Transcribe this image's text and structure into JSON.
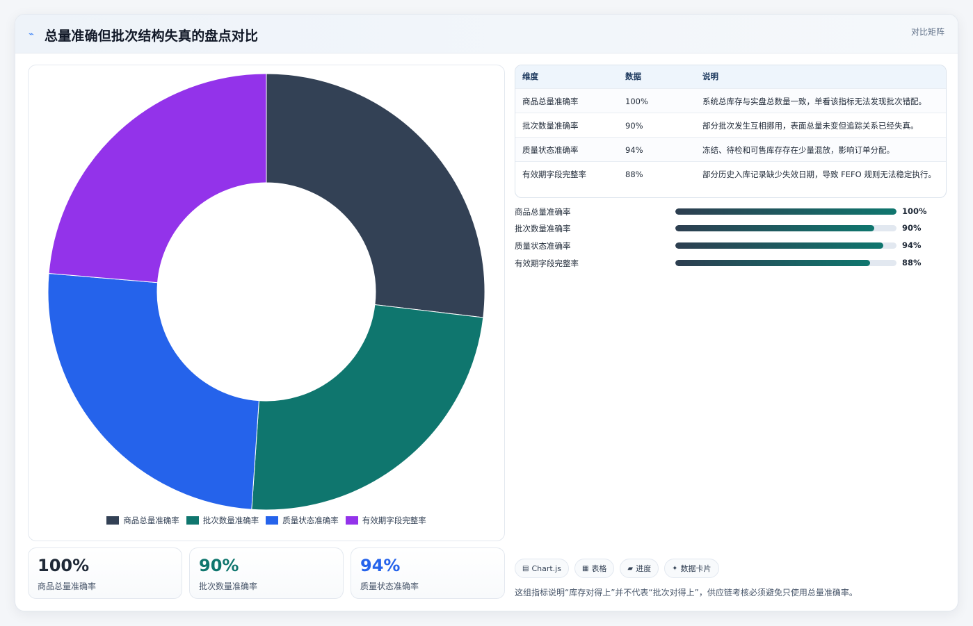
{
  "header": {
    "icon": "bolt-icon",
    "title": "总量准确但批次结构失真的盘点对比",
    "right_label": "对比矩阵"
  },
  "chart_data": {
    "type": "pie",
    "donut": true,
    "categories": [
      "商品总量准确率",
      "批次数量准确率",
      "质量状态准确率",
      "有效期字段完整率"
    ],
    "values": [
      100,
      90,
      94,
      88
    ],
    "unit": "%",
    "colors": [
      "#334155",
      "#0f766e",
      "#2563eb",
      "#9333ea"
    ],
    "legend_position": "bottom"
  },
  "stats": [
    {
      "value": "100%",
      "label": "商品总量准确率",
      "color": "#1f2937"
    },
    {
      "value": "90%",
      "label": "批次数量准确率",
      "color": "#0f766e"
    },
    {
      "value": "94%",
      "label": "质量状态准确率",
      "color": "#2563eb"
    }
  ],
  "table": {
    "headers": [
      "维度",
      "数据",
      "说明"
    ],
    "rows": [
      [
        "商品总量准确率",
        "100%",
        "系统总库存与实盘总数量一致，单看该指标无法发现批次错配。"
      ],
      [
        "批次数量准确率",
        "90%",
        "部分批次发生互相挪用，表面总量未变但追踪关系已经失真。"
      ],
      [
        "质量状态准确率",
        "94%",
        "冻结、待检和可售库存存在少量混放，影响订单分配。"
      ],
      [
        "有效期字段完整率",
        "88%",
        "部分历史入库记录缺少失效日期，导致 FEFO 规则无法稳定执行。"
      ]
    ]
  },
  "progress": [
    {
      "label": "商品总量准确率",
      "value": 100,
      "value_label": "100%"
    },
    {
      "label": "批次数量准确率",
      "value": 90,
      "value_label": "90%"
    },
    {
      "label": "质量状态准确率",
      "value": 94,
      "value_label": "94%"
    },
    {
      "label": "有效期字段完整率",
      "value": 88,
      "value_label": "88%"
    }
  ],
  "chips": [
    {
      "icon": "chart-icon",
      "glyph": "▤",
      "label": "Chart.js"
    },
    {
      "icon": "table-icon",
      "glyph": "▦",
      "label": "表格"
    },
    {
      "icon": "progress-icon",
      "glyph": "▰",
      "label": "进度"
    },
    {
      "icon": "sparkle-icon",
      "glyph": "✦",
      "label": "数据卡片"
    }
  ],
  "footnote": "这组指标说明“库存对得上”并不代表“批次对得上”，供应链考核必须避免只使用总量准确率。"
}
